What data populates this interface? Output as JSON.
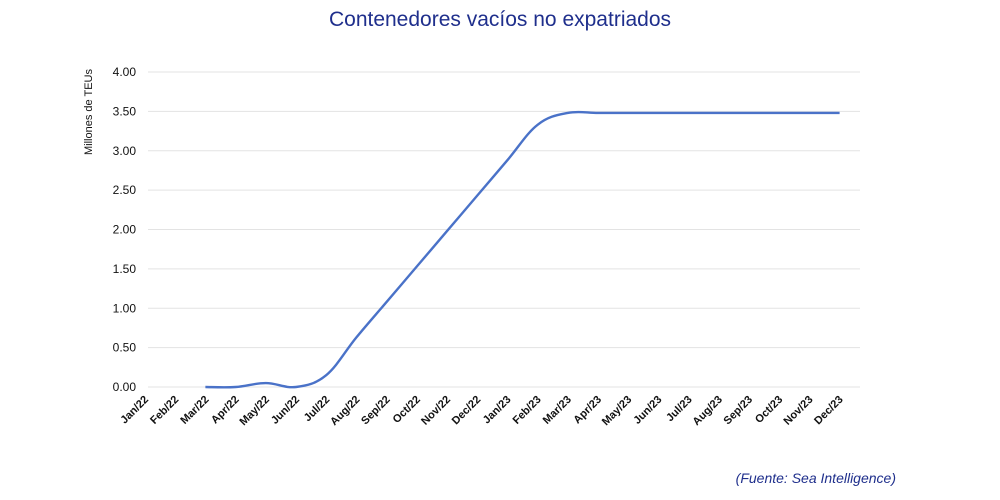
{
  "chart_data": {
    "type": "line",
    "title": "Contenedores vacíos no expatriados",
    "ylabel": "Millones de TEUs",
    "xlabel": "",
    "ylim": [
      0,
      4.0
    ],
    "yticks": [
      "0.00",
      "0.50",
      "1.00",
      "1.50",
      "2.00",
      "2.50",
      "3.00",
      "3.50",
      "4.00"
    ],
    "grid": true,
    "categories": [
      "Jan/22",
      "Feb/22",
      "Mar/22",
      "Apr/22",
      "May/22",
      "Jun/22",
      "Jul/22",
      "Aug/22",
      "Sep/22",
      "Oct/22",
      "Nov/22",
      "Dec/22",
      "Jan/23",
      "Feb/23",
      "Mar/23",
      "Apr/23",
      "May/23",
      "Jun/23",
      "Jul/23",
      "Aug/23",
      "Sep/23",
      "Oct/23",
      "Nov/23",
      "Dec/23"
    ],
    "series": [
      {
        "color": "#4a72c8",
        "values": [
          null,
          null,
          0.0,
          0.0,
          0.05,
          0.0,
          0.15,
          0.63,
          1.08,
          1.53,
          1.98,
          2.43,
          2.88,
          3.33,
          3.48,
          3.48,
          3.48,
          3.48,
          3.48,
          3.48,
          3.48,
          3.48,
          3.48,
          3.48
        ]
      }
    ]
  },
  "source": "(Fuente: Sea Intelligence)"
}
